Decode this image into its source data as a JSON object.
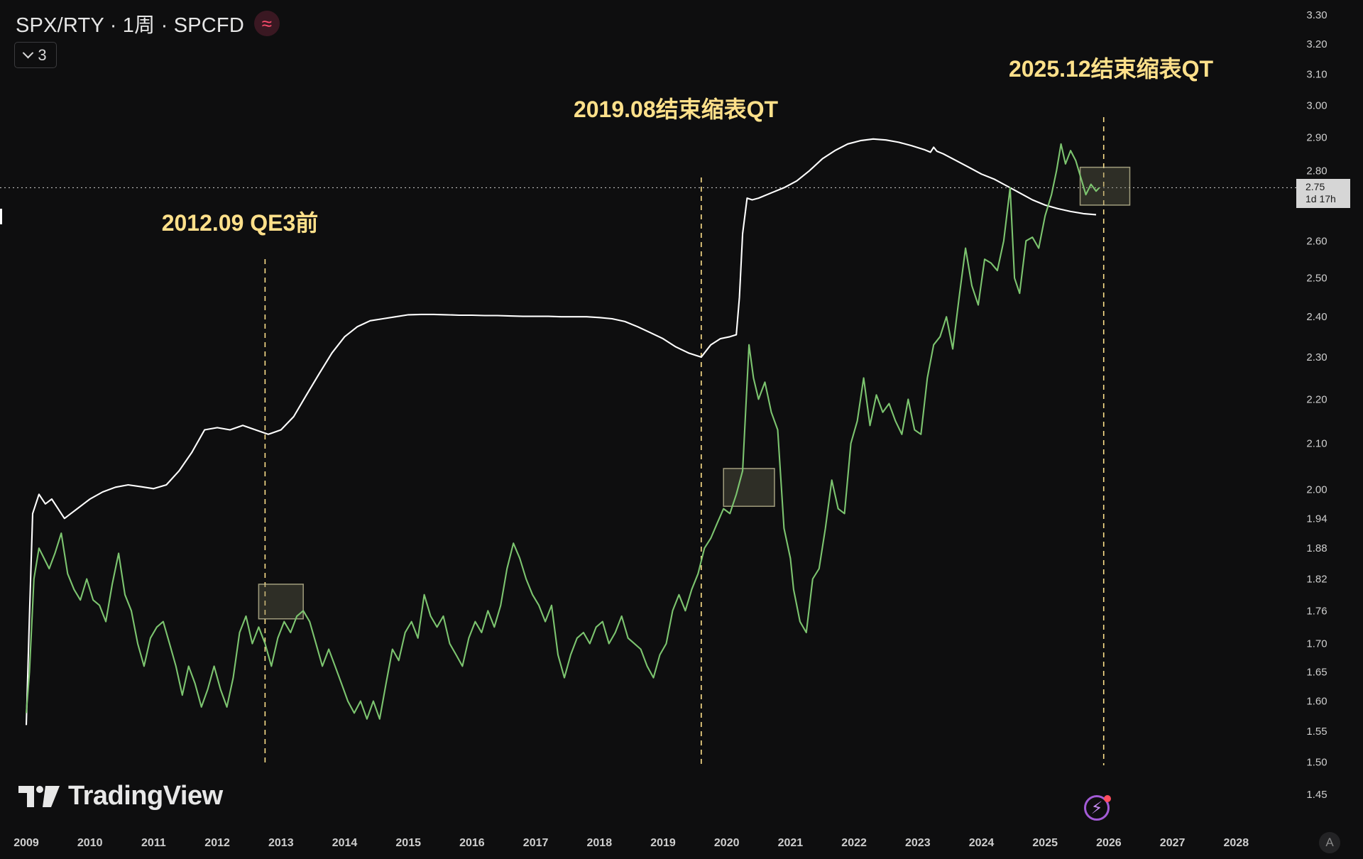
{
  "header": {
    "title": "SPX/RTY · 1周 · SPCFD",
    "wave_icon": "≈",
    "collapse_count": "3"
  },
  "branding": {
    "logo_text": "TradingView"
  },
  "price_tag": {
    "value": "2.75",
    "countdown": "1d 17h"
  },
  "buttons": {
    "auto_label": "A",
    "bolt_icon": "⚡"
  },
  "colors": {
    "background": "#0e0e0f",
    "ratio_line": "#7cc46f",
    "overlay_line": "#ffffff",
    "annotation": "#ffe08a",
    "box_fill": "#6b6b52",
    "box_stroke": "#d8d3a6"
  },
  "chart_data": {
    "type": "line",
    "ylim": [
      1.45,
      3.3
    ],
    "y_scale": "log",
    "y_ticks": [
      "3.30",
      "3.20",
      "3.10",
      "3.00",
      "2.90",
      "2.80",
      "2.60",
      "2.50",
      "2.40",
      "2.30",
      "2.20",
      "2.10",
      "2.00",
      "1.94",
      "1.88",
      "1.82",
      "1.76",
      "1.70",
      "1.65",
      "1.60",
      "1.55",
      "1.50",
      "1.45"
    ],
    "x_ticks": [
      "2009",
      "2010",
      "2011",
      "2012",
      "2013",
      "2014",
      "2015",
      "2016",
      "2017",
      "2018",
      "2019",
      "2020",
      "2021",
      "2022",
      "2023",
      "2024",
      "2025",
      "2026",
      "2027",
      "2028"
    ],
    "annotations": [
      {
        "text": "2012.09 QE3前",
        "x": 2012.75
      },
      {
        "text": "2019.08结束缩表QT",
        "x": 2019.6
      },
      {
        "text": "2025.12结束缩表QT",
        "x": 2025.92
      }
    ],
    "highlight_boxes": [
      {
        "x0": 2012.65,
        "x1": 2013.35,
        "y0": 1.745,
        "y1": 1.81
      },
      {
        "x0": 2019.95,
        "x1": 2020.75,
        "y0": 1.965,
        "y1": 2.045
      },
      {
        "x0": 2025.55,
        "x1": 2026.33,
        "y0": 2.7,
        "y1": 2.81
      }
    ],
    "current_price_line": 2.75,
    "series": [
      {
        "values": [
          [
            2009.0,
            1.58
          ],
          [
            2009.05,
            1.65
          ],
          [
            2009.12,
            1.82
          ],
          [
            2009.2,
            1.88
          ],
          [
            2009.28,
            1.86
          ],
          [
            2009.36,
            1.84
          ],
          [
            2009.45,
            1.87
          ],
          [
            2009.55,
            1.91
          ],
          [
            2009.65,
            1.83
          ],
          [
            2009.75,
            1.8
          ],
          [
            2009.85,
            1.78
          ],
          [
            2009.95,
            1.82
          ],
          [
            2010.05,
            1.78
          ],
          [
            2010.15,
            1.77
          ],
          [
            2010.25,
            1.74
          ],
          [
            2010.35,
            1.81
          ],
          [
            2010.45,
            1.87
          ],
          [
            2010.55,
            1.79
          ],
          [
            2010.65,
            1.76
          ],
          [
            2010.75,
            1.7
          ],
          [
            2010.85,
            1.66
          ],
          [
            2010.95,
            1.71
          ],
          [
            2011.05,
            1.73
          ],
          [
            2011.15,
            1.74
          ],
          [
            2011.25,
            1.7
          ],
          [
            2011.35,
            1.66
          ],
          [
            2011.45,
            1.61
          ],
          [
            2011.55,
            1.66
          ],
          [
            2011.65,
            1.63
          ],
          [
            2011.75,
            1.59
          ],
          [
            2011.85,
            1.62
          ],
          [
            2011.95,
            1.66
          ],
          [
            2012.05,
            1.62
          ],
          [
            2012.15,
            1.59
          ],
          [
            2012.25,
            1.64
          ],
          [
            2012.35,
            1.72
          ],
          [
            2012.45,
            1.75
          ],
          [
            2012.55,
            1.7
          ],
          [
            2012.65,
            1.73
          ],
          [
            2012.75,
            1.7
          ],
          [
            2012.85,
            1.66
          ],
          [
            2012.95,
            1.71
          ],
          [
            2013.05,
            1.74
          ],
          [
            2013.15,
            1.72
          ],
          [
            2013.25,
            1.75
          ],
          [
            2013.35,
            1.76
          ],
          [
            2013.45,
            1.74
          ],
          [
            2013.55,
            1.7
          ],
          [
            2013.65,
            1.66
          ],
          [
            2013.75,
            1.69
          ],
          [
            2013.85,
            1.66
          ],
          [
            2013.95,
            1.63
          ],
          [
            2014.05,
            1.6
          ],
          [
            2014.15,
            1.58
          ],
          [
            2014.25,
            1.6
          ],
          [
            2014.35,
            1.57
          ],
          [
            2014.45,
            1.6
          ],
          [
            2014.55,
            1.57
          ],
          [
            2014.65,
            1.63
          ],
          [
            2014.75,
            1.69
          ],
          [
            2014.85,
            1.67
          ],
          [
            2014.95,
            1.72
          ],
          [
            2015.05,
            1.74
          ],
          [
            2015.15,
            1.71
          ],
          [
            2015.25,
            1.79
          ],
          [
            2015.35,
            1.75
          ],
          [
            2015.45,
            1.73
          ],
          [
            2015.55,
            1.75
          ],
          [
            2015.65,
            1.7
          ],
          [
            2015.75,
            1.68
          ],
          [
            2015.85,
            1.66
          ],
          [
            2015.95,
            1.71
          ],
          [
            2016.05,
            1.74
          ],
          [
            2016.15,
            1.72
          ],
          [
            2016.25,
            1.76
          ],
          [
            2016.35,
            1.73
          ],
          [
            2016.45,
            1.77
          ],
          [
            2016.55,
            1.84
          ],
          [
            2016.65,
            1.89
          ],
          [
            2016.75,
            1.86
          ],
          [
            2016.85,
            1.82
          ],
          [
            2016.95,
            1.79
          ],
          [
            2017.05,
            1.77
          ],
          [
            2017.15,
            1.74
          ],
          [
            2017.25,
            1.77
          ],
          [
            2017.35,
            1.68
          ],
          [
            2017.45,
            1.64
          ],
          [
            2017.55,
            1.68
          ],
          [
            2017.65,
            1.71
          ],
          [
            2017.75,
            1.72
          ],
          [
            2017.85,
            1.7
          ],
          [
            2017.95,
            1.73
          ],
          [
            2018.05,
            1.74
          ],
          [
            2018.15,
            1.7
          ],
          [
            2018.25,
            1.72
          ],
          [
            2018.35,
            1.75
          ],
          [
            2018.45,
            1.71
          ],
          [
            2018.55,
            1.7
          ],
          [
            2018.65,
            1.69
          ],
          [
            2018.75,
            1.66
          ],
          [
            2018.85,
            1.64
          ],
          [
            2018.95,
            1.68
          ],
          [
            2019.05,
            1.7
          ],
          [
            2019.15,
            1.76
          ],
          [
            2019.25,
            1.79
          ],
          [
            2019.35,
            1.76
          ],
          [
            2019.45,
            1.8
          ],
          [
            2019.55,
            1.83
          ],
          [
            2019.65,
            1.88
          ],
          [
            2019.75,
            1.9
          ],
          [
            2019.85,
            1.93
          ],
          [
            2019.95,
            1.96
          ],
          [
            2020.05,
            1.95
          ],
          [
            2020.15,
            1.99
          ],
          [
            2020.25,
            2.04
          ],
          [
            2020.35,
            2.33
          ],
          [
            2020.42,
            2.25
          ],
          [
            2020.5,
            2.2
          ],
          [
            2020.6,
            2.24
          ],
          [
            2020.7,
            2.17
          ],
          [
            2020.8,
            2.13
          ],
          [
            2020.9,
            1.92
          ],
          [
            2021.0,
            1.86
          ],
          [
            2021.05,
            1.8
          ],
          [
            2021.15,
            1.74
          ],
          [
            2021.25,
            1.72
          ],
          [
            2021.35,
            1.82
          ],
          [
            2021.45,
            1.84
          ],
          [
            2021.55,
            1.92
          ],
          [
            2021.65,
            2.02
          ],
          [
            2021.75,
            1.96
          ],
          [
            2021.85,
            1.95
          ],
          [
            2021.95,
            2.1
          ],
          [
            2022.05,
            2.15
          ],
          [
            2022.15,
            2.25
          ],
          [
            2022.25,
            2.14
          ],
          [
            2022.35,
            2.21
          ],
          [
            2022.45,
            2.17
          ],
          [
            2022.55,
            2.19
          ],
          [
            2022.65,
            2.15
          ],
          [
            2022.75,
            2.12
          ],
          [
            2022.85,
            2.2
          ],
          [
            2022.95,
            2.13
          ],
          [
            2023.05,
            2.12
          ],
          [
            2023.15,
            2.25
          ],
          [
            2023.25,
            2.33
          ],
          [
            2023.35,
            2.35
          ],
          [
            2023.45,
            2.4
          ],
          [
            2023.55,
            2.32
          ],
          [
            2023.65,
            2.45
          ],
          [
            2023.75,
            2.58
          ],
          [
            2023.85,
            2.48
          ],
          [
            2023.95,
            2.43
          ],
          [
            2024.05,
            2.55
          ],
          [
            2024.15,
            2.54
          ],
          [
            2024.25,
            2.52
          ],
          [
            2024.35,
            2.6
          ],
          [
            2024.45,
            2.75
          ],
          [
            2024.52,
            2.5
          ],
          [
            2024.6,
            2.46
          ],
          [
            2024.7,
            2.6
          ],
          [
            2024.8,
            2.61
          ],
          [
            2024.9,
            2.58
          ],
          [
            2025.0,
            2.67
          ],
          [
            2025.1,
            2.73
          ],
          [
            2025.18,
            2.8
          ],
          [
            2025.25,
            2.88
          ],
          [
            2025.32,
            2.82
          ],
          [
            2025.4,
            2.86
          ],
          [
            2025.48,
            2.83
          ],
          [
            2025.56,
            2.78
          ],
          [
            2025.64,
            2.73
          ],
          [
            2025.72,
            2.76
          ],
          [
            2025.8,
            2.74
          ],
          [
            2025.85,
            2.75
          ]
        ]
      },
      {
        "values": [
          [
            2009.0,
            1.56
          ],
          [
            2009.05,
            1.75
          ],
          [
            2009.1,
            1.95
          ],
          [
            2009.2,
            1.99
          ],
          [
            2009.3,
            1.97
          ],
          [
            2009.4,
            1.98
          ],
          [
            2009.5,
            1.96
          ],
          [
            2009.6,
            1.94
          ],
          [
            2009.7,
            1.95
          ],
          [
            2009.8,
            1.96
          ],
          [
            2009.9,
            1.97
          ],
          [
            2010.0,
            1.98
          ],
          [
            2010.2,
            1.995
          ],
          [
            2010.4,
            2.005
          ],
          [
            2010.6,
            2.01
          ],
          [
            2010.8,
            2.006
          ],
          [
            2011.0,
            2.002
          ],
          [
            2011.2,
            2.01
          ],
          [
            2011.4,
            2.04
          ],
          [
            2011.6,
            2.08
          ],
          [
            2011.8,
            2.13
          ],
          [
            2012.0,
            2.135
          ],
          [
            2012.2,
            2.13
          ],
          [
            2012.4,
            2.14
          ],
          [
            2012.6,
            2.13
          ],
          [
            2012.8,
            2.12
          ],
          [
            2013.0,
            2.13
          ],
          [
            2013.2,
            2.16
          ],
          [
            2013.4,
            2.21
          ],
          [
            2013.6,
            2.26
          ],
          [
            2013.8,
            2.31
          ],
          [
            2014.0,
            2.35
          ],
          [
            2014.2,
            2.375
          ],
          [
            2014.4,
            2.39
          ],
          [
            2014.6,
            2.395
          ],
          [
            2014.8,
            2.4
          ],
          [
            2015.0,
            2.405
          ],
          [
            2015.2,
            2.406
          ],
          [
            2015.4,
            2.406
          ],
          [
            2015.6,
            2.405
          ],
          [
            2015.8,
            2.404
          ],
          [
            2016.0,
            2.404
          ],
          [
            2016.2,
            2.403
          ],
          [
            2016.4,
            2.403
          ],
          [
            2016.6,
            2.402
          ],
          [
            2016.8,
            2.401
          ],
          [
            2017.0,
            2.401
          ],
          [
            2017.2,
            2.401
          ],
          [
            2017.4,
            2.4
          ],
          [
            2017.6,
            2.4
          ],
          [
            2017.8,
            2.4
          ],
          [
            2018.0,
            2.398
          ],
          [
            2018.2,
            2.395
          ],
          [
            2018.4,
            2.388
          ],
          [
            2018.6,
            2.375
          ],
          [
            2018.8,
            2.36
          ],
          [
            2019.0,
            2.345
          ],
          [
            2019.2,
            2.325
          ],
          [
            2019.4,
            2.31
          ],
          [
            2019.6,
            2.3
          ],
          [
            2019.75,
            2.33
          ],
          [
            2019.9,
            2.345
          ],
          [
            2020.05,
            2.35
          ],
          [
            2020.15,
            2.355
          ],
          [
            2020.2,
            2.45
          ],
          [
            2020.25,
            2.62
          ],
          [
            2020.32,
            2.72
          ],
          [
            2020.4,
            2.715
          ],
          [
            2020.5,
            2.72
          ],
          [
            2020.7,
            2.735
          ],
          [
            2020.9,
            2.75
          ],
          [
            2021.1,
            2.77
          ],
          [
            2021.3,
            2.8
          ],
          [
            2021.5,
            2.835
          ],
          [
            2021.7,
            2.86
          ],
          [
            2021.9,
            2.88
          ],
          [
            2022.1,
            2.89
          ],
          [
            2022.3,
            2.895
          ],
          [
            2022.5,
            2.892
          ],
          [
            2022.7,
            2.885
          ],
          [
            2022.9,
            2.875
          ],
          [
            2023.1,
            2.863
          ],
          [
            2023.2,
            2.855
          ],
          [
            2023.25,
            2.87
          ],
          [
            2023.3,
            2.858
          ],
          [
            2023.4,
            2.85
          ],
          [
            2023.6,
            2.83
          ],
          [
            2023.8,
            2.81
          ],
          [
            2024.0,
            2.79
          ],
          [
            2024.2,
            2.775
          ],
          [
            2024.4,
            2.755
          ],
          [
            2024.6,
            2.735
          ],
          [
            2024.8,
            2.715
          ],
          [
            2025.0,
            2.7
          ],
          [
            2025.2,
            2.69
          ],
          [
            2025.4,
            2.682
          ],
          [
            2025.6,
            2.676
          ],
          [
            2025.8,
            2.673
          ]
        ]
      }
    ]
  }
}
